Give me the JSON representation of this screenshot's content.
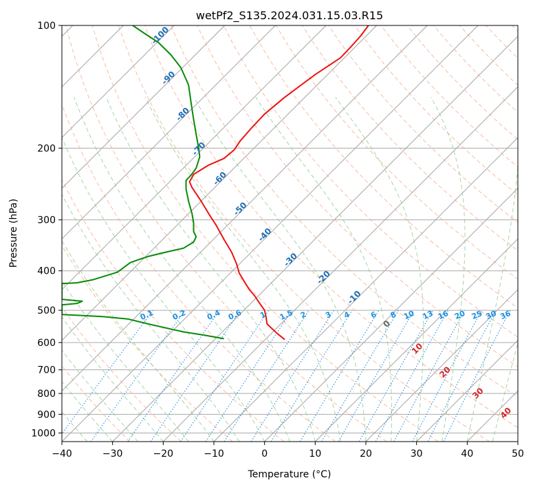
{
  "chart_data": {
    "type": "line",
    "title": "wetPf2_S135.2024.031.15.03.R15",
    "xlabel": "Temperature (°C)",
    "ylabel": "Pressure (hPa)",
    "xlim": [
      -40,
      50
    ],
    "ylim": [
      1050,
      100
    ],
    "y_scale": "log",
    "grid": true,
    "x_ticks": [
      -40,
      -30,
      -20,
      -10,
      0,
      10,
      20,
      30,
      40,
      50
    ],
    "y_ticks": [
      100,
      200,
      300,
      400,
      500,
      600,
      700,
      800,
      900,
      1000
    ],
    "series": [
      {
        "role": "temperature",
        "color": "#ee1111",
        "points": [
          [
            4,
            590
          ],
          [
            2.5,
            570
          ],
          [
            1.5,
            555
          ],
          [
            0.5,
            540
          ],
          [
            0.3,
            520
          ],
          [
            0,
            500
          ],
          [
            -1,
            480
          ],
          [
            -2,
            460
          ],
          [
            -3,
            445
          ],
          [
            -4,
            425
          ],
          [
            -5,
            405
          ],
          [
            -5.5,
            385
          ],
          [
            -6.5,
            360
          ],
          [
            -8,
            335
          ],
          [
            -9.5,
            310
          ],
          [
            -11,
            290
          ],
          [
            -12.5,
            270
          ],
          [
            -14.3,
            250
          ],
          [
            -14.8,
            242
          ],
          [
            -14,
            232
          ],
          [
            -11,
            220
          ],
          [
            -8,
            212
          ],
          [
            -6,
            202
          ],
          [
            -4.8,
            192
          ],
          [
            -2.5,
            178
          ],
          [
            0,
            165
          ],
          [
            4,
            150
          ],
          [
            10,
            132
          ],
          [
            15,
            120
          ],
          [
            17,
            113
          ],
          [
            19,
            106
          ],
          [
            20.5,
            100
          ]
        ]
      },
      {
        "role": "dewpoint",
        "color": "#088a08",
        "points": [
          [
            -8,
            587
          ],
          [
            -12,
            575
          ],
          [
            -16,
            565
          ],
          [
            -23,
            540
          ],
          [
            -27,
            525
          ],
          [
            -32,
            518
          ],
          [
            -40,
            512
          ],
          [
            -40,
            485
          ],
          [
            -37,
            481
          ],
          [
            -36,
            475
          ],
          [
            -40,
            470
          ],
          [
            -40,
            430
          ],
          [
            -37,
            428
          ],
          [
            -34,
            421
          ],
          [
            -31.5,
            412
          ],
          [
            -29,
            403
          ],
          [
            -26.5,
            382
          ],
          [
            -25,
            376
          ],
          [
            -23,
            369
          ],
          [
            -19.5,
            360
          ],
          [
            -16,
            352
          ],
          [
            -14,
            340
          ],
          [
            -13.5,
            330
          ],
          [
            -14,
            320
          ],
          [
            -14,
            305
          ],
          [
            -14.3,
            290
          ],
          [
            -15,
            270
          ],
          [
            -15.5,
            252
          ],
          [
            -15.5,
            240
          ],
          [
            -14.5,
            233
          ],
          [
            -13.5,
            224
          ],
          [
            -12.8,
            210
          ],
          [
            -13,
            200
          ],
          [
            -13.5,
            185
          ],
          [
            -14,
            170
          ],
          [
            -14.5,
            155
          ],
          [
            -15,
            140
          ],
          [
            -16.5,
            127
          ],
          [
            -18.5,
            118
          ],
          [
            -21,
            110
          ],
          [
            -24,
            104
          ],
          [
            -26,
            100
          ]
        ]
      }
    ],
    "mixing_ratio_labels": [
      "0.1",
      "0.2",
      "0.4",
      "0.6",
      "1",
      "1.5",
      "2",
      "3",
      "4",
      "6",
      "8",
      "10",
      "13",
      "16",
      "20",
      "25",
      "30",
      "36"
    ],
    "dry_adiabat_labels": [
      "-100",
      "-90",
      "-80",
      "-70",
      "-60",
      "-50",
      "-40",
      "-30",
      "-20",
      "-10"
    ],
    "moist_adiabat_labels": [
      "0",
      "10",
      "20",
      "30",
      "40"
    ],
    "colors": {
      "temperature": "#ee1111",
      "dewpoint": "#088a08",
      "dry_adiabat": "#f4a582",
      "moist_adiabat": "#8fc98f",
      "mixing_ratio": "#1f8fe0",
      "isotherm": "#999999",
      "dry_adiabat_label": "#1f6fb4",
      "moist_adiabat_label": "#d62728",
      "moist_zero_label": "#666666"
    }
  }
}
